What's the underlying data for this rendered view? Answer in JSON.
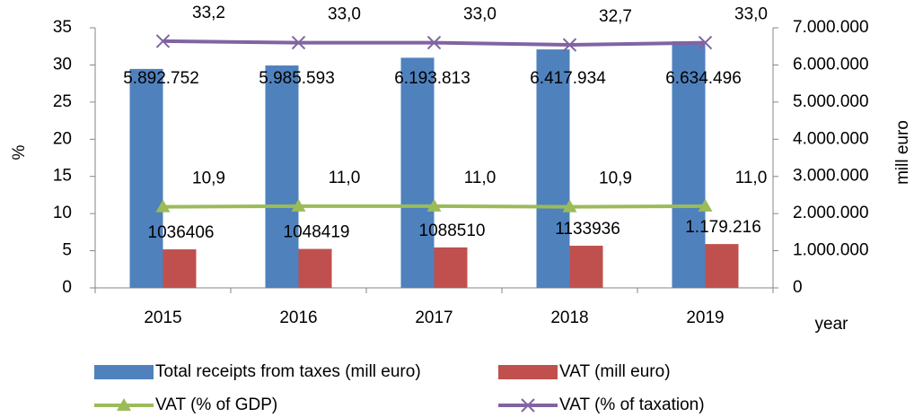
{
  "chart_data": {
    "type": "bar",
    "categories": [
      "2015",
      "2016",
      "2017",
      "2018",
      "2019"
    ],
    "ylabel": "%",
    "y2label": "mill euro",
    "xlabel": "year",
    "ylim": [
      0,
      35
    ],
    "yticks": [
      0,
      5,
      10,
      15,
      20,
      25,
      30,
      35
    ],
    "y2lim": [
      0,
      7000000
    ],
    "y2ticks": [
      {
        "value": 0,
        "label": "0"
      },
      {
        "value": 1000000,
        "label": "1.000.000"
      },
      {
        "value": 2000000,
        "label": "2.000.000"
      },
      {
        "value": 3000000,
        "label": "3.000.000"
      },
      {
        "value": 4000000,
        "label": "4.000.000"
      },
      {
        "value": 5000000,
        "label": "5.000.000"
      },
      {
        "value": 6000000,
        "label": "6.000.000"
      },
      {
        "value": 7000000,
        "label": "7.000.000"
      }
    ],
    "grid": false,
    "legend": "bottom",
    "series": [
      {
        "name": "Total receipts from taxes (mill euro)",
        "type": "bar",
        "axis": "y2",
        "color": "#4f81bd",
        "values": [
          5892752,
          5985593,
          6193813,
          6417934,
          6634496
        ],
        "value_labels": [
          "5.892.752",
          "5.985.593",
          "6.193.813",
          "6.417.934",
          "6.634.496"
        ]
      },
      {
        "name": "VAT (mill euro)",
        "type": "bar",
        "axis": "y2",
        "color": "#c0504d",
        "values": [
          1036406,
          1048419,
          1088510,
          1133936,
          1179216
        ],
        "value_labels": [
          "1036406",
          "1048419",
          "1088510",
          "1133936",
          "1.179.216"
        ]
      },
      {
        "name": "VAT (% of GDP)",
        "type": "line",
        "marker": "triangle",
        "color": "#9bbb59",
        "values": [
          10.9,
          11.0,
          11.0,
          10.9,
          11.0
        ],
        "value_labels": [
          "10,9",
          "11,0",
          "11,0",
          "10,9",
          "11,0"
        ]
      },
      {
        "name": "VAT (% of taxation)",
        "type": "line",
        "marker": "x",
        "color": "#8064a2",
        "values": [
          33.2,
          33.0,
          33.0,
          32.7,
          33.0
        ],
        "value_labels": [
          "33,2",
          "33,0",
          "33,0",
          "32,7",
          "33,0"
        ]
      }
    ]
  }
}
